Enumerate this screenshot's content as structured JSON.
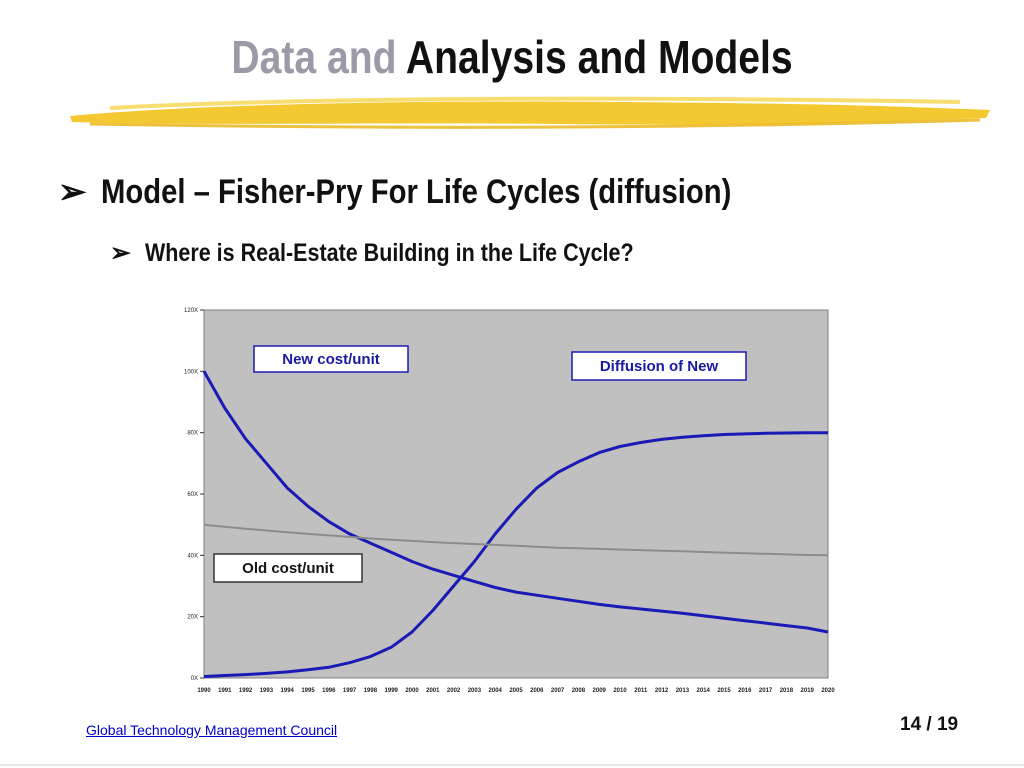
{
  "slide": {
    "title_part1": "Data and",
    "title_part2": "Analysis and Models",
    "bullet_level1": "Model – Fisher-Pry For Life Cycles (diffusion)",
    "bullet_level2": "Where is Real-Estate Building in the Life Cycle?",
    "bullet_glyph": "➢",
    "footer_link": "Global Technology Management Council",
    "page_number": "14 / 19"
  },
  "colors": {
    "brush": "#f2c21b",
    "plot_bg": "#c0c0c0",
    "series_line": "#1a1ab4",
    "flat_line": "#8c8c8c"
  },
  "chart_data": {
    "type": "line",
    "title": "",
    "xlabel": "",
    "ylabel": "",
    "ylim": [
      0,
      120
    ],
    "y_ticks": [
      "0X",
      "20X",
      "40X",
      "60X",
      "80X",
      "100X",
      "120X"
    ],
    "categories": [
      "1990",
      "1991",
      "1992",
      "1993",
      "1994",
      "1995",
      "1996",
      "1997",
      "1998",
      "1999",
      "2000",
      "2001",
      "2002",
      "2003",
      "2004",
      "2005",
      "2006",
      "2007",
      "2008",
      "2009",
      "2010",
      "2011",
      "2012",
      "2013",
      "2014",
      "2015",
      "2016",
      "2017",
      "2018",
      "2019",
      "2020"
    ],
    "grid": false,
    "series": [
      {
        "name": "New cost/unit",
        "values": [
          100,
          88,
          78,
          70,
          62,
          56,
          51,
          47,
          44,
          41,
          38,
          35.5,
          33.5,
          31.5,
          29.5,
          28,
          27,
          26,
          25,
          24,
          23.2,
          22.5,
          21.8,
          21.1,
          20.3,
          19.5,
          18.7,
          17.9,
          17.1,
          16.3,
          15
        ]
      },
      {
        "name": "Diffusion of New",
        "values": [
          0.5,
          0.8,
          1.1,
          1.5,
          2,
          2.7,
          3.5,
          5,
          7,
          10,
          15,
          22,
          30,
          38,
          47,
          55,
          62,
          67,
          70.5,
          73.5,
          75.5,
          76.8,
          77.8,
          78.5,
          79,
          79.4,
          79.6,
          79.8,
          79.9,
          80,
          80
        ]
      },
      {
        "name": "Old cost/unit",
        "values": [
          50,
          49.3,
          48.7,
          48.1,
          47.5,
          47,
          46.5,
          46,
          45.5,
          45.1,
          44.7,
          44.3,
          44,
          43.7,
          43.4,
          43.1,
          42.8,
          42.5,
          42.3,
          42.1,
          41.9,
          41.7,
          41.5,
          41.3,
          41.1,
          40.9,
          40.7,
          40.5,
          40.3,
          40.1,
          40
        ]
      }
    ],
    "annotations": [
      "New cost/unit",
      "Diffusion of New",
      "Old cost/unit"
    ]
  }
}
